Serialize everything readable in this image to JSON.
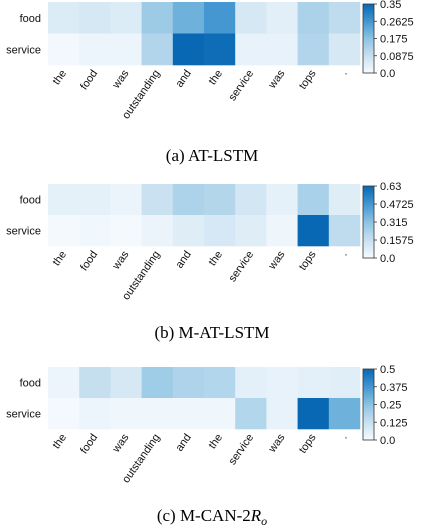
{
  "chart_data": [
    {
      "type": "heatmap",
      "caption": "(a)  AT-LSTM",
      "rows": [
        "food",
        "service"
      ],
      "columns": [
        "the",
        "food",
        "was",
        "outstanding",
        "and",
        "the",
        "service",
        "was",
        "tops",
        "."
      ],
      "values": [
        [
          0.05,
          0.06,
          0.05,
          0.15,
          0.21,
          0.26,
          0.06,
          0.04,
          0.13,
          0.1
        ],
        [
          0.01,
          0.02,
          0.02,
          0.12,
          0.35,
          0.34,
          0.03,
          0.03,
          0.12,
          0.06
        ]
      ],
      "colorbar": {
        "min": 0,
        "max": 0.35,
        "ticks": [
          "0.35",
          "0.2625",
          "0.175",
          "0.0875",
          "0.0"
        ]
      }
    },
    {
      "type": "heatmap",
      "caption": "(b)  M-AT-LSTM",
      "rows": [
        "food",
        "service"
      ],
      "columns": [
        "the",
        "food",
        "was",
        "outstanding",
        "and",
        "the",
        "service",
        "was",
        "tops",
        "."
      ],
      "values": [
        [
          0.06,
          0.06,
          0.04,
          0.15,
          0.23,
          0.21,
          0.12,
          0.06,
          0.24,
          0.08
        ],
        [
          0.01,
          0.02,
          0.01,
          0.04,
          0.08,
          0.11,
          0.08,
          0.03,
          0.63,
          0.18
        ]
      ],
      "colorbar": {
        "min": 0,
        "max": 0.63,
        "ticks": [
          "0.63",
          "0.4725",
          "0.315",
          "0.1575",
          "0.0"
        ]
      }
    },
    {
      "type": "heatmap",
      "caption_prefix": "(c)  M-CAN-2",
      "caption_var": "R",
      "caption_sub": "o",
      "rows": [
        "food",
        "service"
      ],
      "columns": [
        "the",
        "food",
        "was",
        "outstanding",
        "and",
        "the",
        "service",
        "was",
        "tops",
        "."
      ],
      "values": [
        [
          0.03,
          0.13,
          0.09,
          0.21,
          0.18,
          0.17,
          0.05,
          0.04,
          0.05,
          0.06
        ],
        [
          0.01,
          0.03,
          0.02,
          0.02,
          0.02,
          0.02,
          0.17,
          0.04,
          0.5,
          0.3
        ]
      ],
      "colorbar": {
        "min": 0,
        "max": 0.5,
        "ticks": [
          "0.5",
          "0.375",
          "0.25",
          "0.125",
          "0.0"
        ]
      }
    }
  ]
}
